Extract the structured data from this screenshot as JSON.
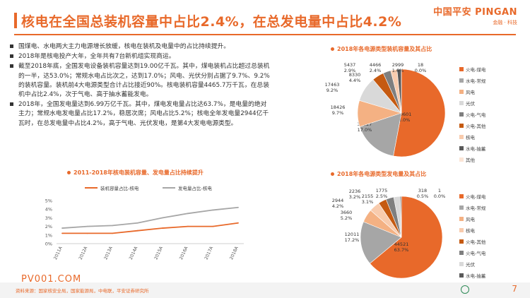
{
  "header": {
    "title": "核电在全国总装机容量中占比2.4%，在总发电量中占比4.2%",
    "logo_main": "中国平安 PINGAN",
    "logo_sub": "金融 · 科技"
  },
  "bullets": [
    "国煤电、水电两大主力电源增长放缓，核电在装机及电量中的占比持续提升。",
    "2018年是核电投产大年，全年共有7台新机组实现商运。",
    "截至2018年底，全国发电设备装机容量达到19.00亿千瓦。其中，煤电装机占比超过总装机的一半，达53.0%；常规水电占比次之，达到17.0%；风电、光伏分别占据了9.7%、9.2%的装机容量。装机前4大电源类型合计占比接近90%。核电装机容量4465.7万千瓦，在总装机中占比2.4%，次于气电、高于抽水蓄能发电。",
    "2018年，全国发电量达到6.99万亿千瓦。其中，煤电发电量占比达63.7%，是电量的绝对主力；常规水电发电量占比17.2%，稳居次席；风电占比5.2%；核电全年发电量2944亿千瓦时，在总发电量中占比4.2%，高于气电、光伏发电，是第4大发电电源类型。"
  ],
  "line_chart_title": "2011-2018年核电装机容量、发电量占比持续提升",
  "pie1_title": "2018年各电源类型装机容量及其占比",
  "pie2_title": "2018年各电源类型发电量及其占比",
  "chart_data": [
    {
      "type": "line",
      "categories": [
        "2011A",
        "2012A",
        "2013A",
        "2014A",
        "2015A",
        "2016A",
        "2017A",
        "2018A"
      ],
      "series": [
        {
          "name": "装机容量占比-核电",
          "color": "#e8692a",
          "values": [
            1.2,
            1.2,
            1.2,
            1.5,
            1.8,
            2.0,
            2.0,
            2.4
          ]
        },
        {
          "name": "发电量占比-核电",
          "color": "#a6a6a6",
          "values": [
            1.8,
            2.0,
            2.1,
            2.4,
            3.0,
            3.5,
            3.9,
            4.2
          ]
        }
      ],
      "yticks": [
        "0%",
        "1%",
        "2%",
        "3%",
        "4%",
        "5%"
      ],
      "ylim": [
        0,
        5
      ]
    },
    {
      "type": "pie",
      "slices": [
        {
          "name": "火电-煤电",
          "value": 100601,
          "label": "53.0%",
          "color": "#e8692a"
        },
        {
          "name": "水电-常规",
          "value": 32227,
          "label": "17.0%",
          "color": "#a6a6a6"
        },
        {
          "name": "风电",
          "value": 18426,
          "label": "9.7%",
          "color": "#f4b183"
        },
        {
          "name": "光伏",
          "value": 17463,
          "label": "9.2%",
          "color": "#d9d9d9"
        },
        {
          "name": "火电-其他",
          "value": 8330,
          "label": "4.4%",
          "color": "#c55a11"
        },
        {
          "name": "火电-气电",
          "value": 5437,
          "label": "2.9%",
          "color": "#7f7f7f"
        },
        {
          "name": "核电",
          "value": 4466,
          "label": "2.4%",
          "color": "#f8cbad"
        },
        {
          "name": "水电-抽蓄",
          "value": 2999,
          "label": "1.6%",
          "color": "#595959"
        },
        {
          "name": "其他",
          "value": 18,
          "label": "0.0%",
          "color": "#fbe5d6"
        }
      ],
      "legend": [
        "火电-煤电",
        "水电-常规",
        "风电",
        "光伏",
        "火电-气电",
        "火电-其他",
        "核电",
        "水电-抽蓄",
        "其他"
      ]
    },
    {
      "type": "pie",
      "slices": [
        {
          "name": "火电-煤电",
          "value": 44521,
          "label": "63.7%",
          "color": "#e8692a"
        },
        {
          "name": "水电-常规",
          "value": 12011,
          "label": "17.2%",
          "color": "#a6a6a6"
        },
        {
          "name": "风电",
          "value": 3660,
          "label": "5.2%",
          "color": "#f4b183"
        },
        {
          "name": "核电",
          "value": 2944,
          "label": "4.2%",
          "color": "#f8cbad"
        },
        {
          "name": "火电-其他",
          "value": 2236,
          "label": "3.2%",
          "color": "#c55a11"
        },
        {
          "name": "火电-气电",
          "value": 2155,
          "label": "3.1%",
          "color": "#7f7f7f"
        },
        {
          "name": "光伏",
          "value": 1775,
          "label": "2.5%",
          "color": "#d9d9d9"
        },
        {
          "name": "水电-抽蓄",
          "value": 318,
          "label": "0.5%",
          "color": "#595959"
        },
        {
          "name": "其他",
          "value": 1,
          "label": "0.0%",
          "color": "#fbe5d6"
        }
      ],
      "legend": [
        "火电-煤电",
        "水电-常规",
        "风电",
        "核电",
        "火电-其他",
        "火电-气电",
        "光伏",
        "水电-抽蓄",
        "其他"
      ]
    }
  ],
  "watermark": "PV001.COM",
  "footer": {
    "source": "资料来源：国家核安全局，国家能源局，中电联，平安证券研究所",
    "page": "7"
  }
}
